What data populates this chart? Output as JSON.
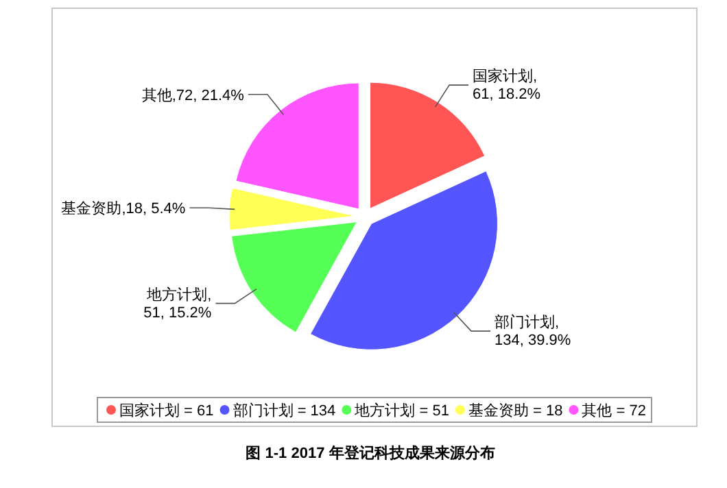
{
  "chart_data": {
    "type": "pie",
    "categories": [
      "国家计划 = 61",
      "部门计划 = 134",
      "地方计划 = 51",
      "基金资助 = 18",
      "其他 = 72"
    ],
    "values": [
      61,
      134,
      51,
      18,
      72
    ],
    "value_labels": [
      "国家计划, 61, 18.2%",
      "部门计划, 134, 39.9%",
      "地方计划, 51, 15.2%",
      "基金资助,18, 5.4%",
      "其他,72, 21.4%"
    ],
    "colors": [
      "#ff5555",
      "#5555ff",
      "#55ff55",
      "#ffff55",
      "#ff55ff"
    ],
    "legend": "bottom",
    "annotations": [
      "图 1-1   2017 年登记科技成果来源分布"
    ]
  }
}
